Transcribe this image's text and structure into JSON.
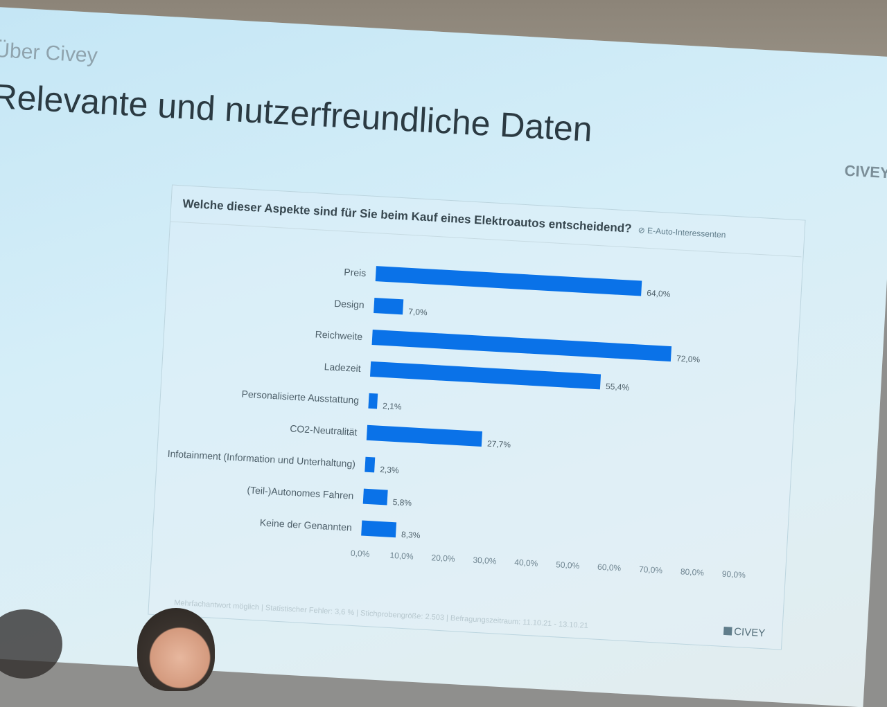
{
  "slide": {
    "overline": "Über Civey",
    "title": "Relevante und nutzerfreundliche Daten",
    "brand": "CIVEY"
  },
  "chart": {
    "question": "Welche dieser Aspekte sind für Sie beim Kauf eines Elektroautos entscheidend?",
    "audience": "E-Auto-Interessenten",
    "footnote": "Mehrfachantwort möglich | Statistischer Fehler: 3,6 % | Stichprobengröße: 2.503 | Befragungszeitraum: 11.10.21 - 13.10.21",
    "brand": "CIVEY"
  },
  "chart_data": {
    "type": "bar",
    "orientation": "horizontal",
    "categories": [
      "Preis",
      "Design",
      "Reichweite",
      "Ladezeit",
      "Personalisierte Ausstattung",
      "CO2-Neutralität",
      "Infotainment (Information und Unterhaltung)",
      "(Teil-)Autonomes Fahren",
      "Keine der Genannten"
    ],
    "values": [
      64.0,
      7.0,
      72.0,
      55.4,
      2.1,
      27.7,
      2.3,
      5.8,
      8.3
    ],
    "value_labels": [
      "64,0%",
      "7,0%",
      "72,0%",
      "55,4%",
      "2,1%",
      "27,7%",
      "2,3%",
      "5,8%",
      "8,3%"
    ],
    "xlim": [
      0,
      90
    ],
    "xticks": [
      "0,0%",
      "10,0%",
      "20,0%",
      "30,0%",
      "40,0%",
      "50,0%",
      "60,0%",
      "70,0%",
      "80,0%",
      "90,0%"
    ],
    "xlabel": "",
    "ylabel": "",
    "grid": false,
    "legend": "none",
    "bar_color": "#0a72e8"
  }
}
